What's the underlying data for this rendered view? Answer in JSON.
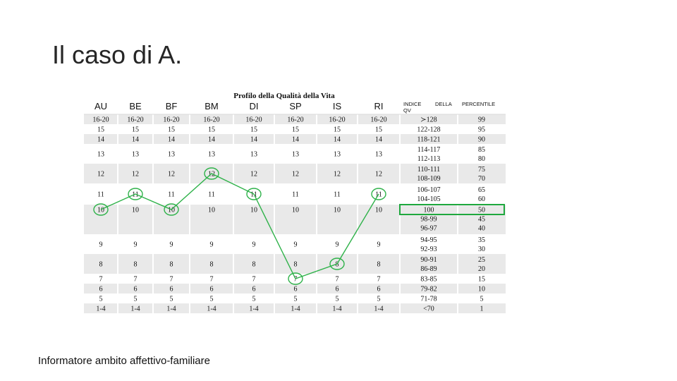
{
  "slide": {
    "title": "Il caso di A.",
    "caption": "Informatore ambito affettivo-familiare"
  },
  "table": {
    "title": "Profilo della Qualità della Vita",
    "columns": [
      "AU",
      "BE",
      "BF",
      "BM",
      "DI",
      "SP",
      "IS",
      "RI"
    ],
    "index_header_1": "INDICE",
    "index_header_2": "DELLA",
    "index_header_3": "QV",
    "percentile_header": "PERCENTILE",
    "score_rows": [
      "16-20",
      "15",
      "14",
      "13",
      "12",
      "11",
      "10",
      "9",
      "8",
      "7",
      "6",
      "5",
      "1-4"
    ],
    "index_rows": [
      [
        "≻128"
      ],
      [
        "122-128"
      ],
      [
        "118-121"
      ],
      [
        "114-117",
        "112-113"
      ],
      [
        "110-111",
        "108-109"
      ],
      [
        "106-107",
        "104-105"
      ],
      [
        "100",
        "98-99",
        "96-97"
      ],
      [
        "94-95",
        "92-93"
      ],
      [
        "90-91",
        "86-89"
      ],
      [
        "83-85"
      ],
      [
        "79-82"
      ],
      [
        "71-78"
      ],
      [
        "<70"
      ]
    ],
    "percentile_rows": [
      [
        "99"
      ],
      [
        "95"
      ],
      [
        "90"
      ],
      [
        "85",
        "80"
      ],
      [
        "75",
        "70"
      ],
      [
        "65",
        "60"
      ],
      [
        "50",
        "45",
        "40"
      ],
      [
        "35",
        "30"
      ],
      [
        "25",
        "20"
      ],
      [
        "15"
      ],
      [
        "10"
      ],
      [
        "5"
      ],
      [
        "1"
      ]
    ],
    "selected_scores": {
      "AU": "10",
      "BE": "11",
      "BF": "10",
      "BM": "12",
      "DI": "11",
      "SP": "7",
      "IS": "8",
      "RI": "11"
    },
    "highlight_index": "100",
    "highlight_percentile": "50",
    "accent_color": "#2fb24a"
  }
}
